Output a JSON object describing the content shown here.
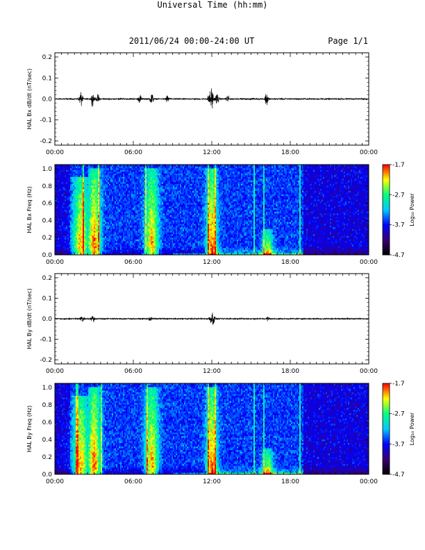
{
  "header": {
    "title": "2011/06/24  00:00-24:00 UT",
    "page": "Page 1/1"
  },
  "colors": {
    "waveform": "#000000",
    "colormap": [
      "#000000",
      "#3a0070",
      "#0000ff",
      "#00c8ff",
      "#00ff80",
      "#ffff00",
      "#ff0000"
    ]
  },
  "chart_data": [
    {
      "type": "line",
      "ylabel": "HAL Bx dB/dt (nT/sec)",
      "ylim": [
        -0.22,
        0.22
      ],
      "yticks": [
        "0.2",
        "0.1",
        "0.0",
        "-0.1",
        "-0.2"
      ],
      "yticks_values": [
        0.2,
        0.1,
        0.0,
        -0.1,
        -0.2
      ],
      "xlim": [
        0,
        24
      ],
      "xticks": [
        "00:00",
        "06:00",
        "12:00",
        "18:00",
        "00:00"
      ],
      "bursts": [
        {
          "t": 2.0,
          "amp": 0.035
        },
        {
          "t": 2.9,
          "amp": 0.03
        },
        {
          "t": 3.3,
          "amp": 0.02
        },
        {
          "t": 6.5,
          "amp": 0.02
        },
        {
          "t": 7.4,
          "amp": 0.03
        },
        {
          "t": 8.6,
          "amp": 0.018
        },
        {
          "t": 11.8,
          "amp": 0.025
        },
        {
          "t": 12.0,
          "amp": 0.055
        },
        {
          "t": 12.4,
          "amp": 0.03
        },
        {
          "t": 13.2,
          "amp": 0.02
        },
        {
          "t": 16.2,
          "amp": 0.038
        }
      ]
    },
    {
      "type": "heatmap",
      "ylabel": "HAL Bx Freq (Hz)",
      "ylim": [
        0,
        1.05
      ],
      "yticks": [
        "1.0",
        "0.8",
        "0.6",
        "0.4",
        "0.2",
        "0.0"
      ],
      "yticks_values": [
        1.0,
        0.8,
        0.6,
        0.4,
        0.2,
        0.0
      ],
      "xlim": [
        0,
        24
      ],
      "xticks": [
        "00:00",
        "06:00",
        "12:00",
        "18:00",
        "00:00"
      ],
      "colorbar_label": "Log₁₀ Power",
      "colorbar_range": [
        -4.7,
        -1.7
      ],
      "colorbar_ticks": [
        "-1.7",
        "-2.7",
        "-3.7",
        "-4.7"
      ],
      "colorbar_ticks_values": [
        -1.7,
        -2.7,
        -3.7,
        -4.7
      ],
      "activity": [
        {
          "t": 2.0,
          "w": 0.6,
          "level": 0.55,
          "fmax": 0.9
        },
        {
          "t": 3.0,
          "w": 0.5,
          "level": 0.6,
          "fmax": 1.0
        },
        {
          "t": 7.4,
          "w": 0.5,
          "level": 0.55,
          "fmax": 1.0
        },
        {
          "t": 12.0,
          "w": 0.4,
          "level": 0.6,
          "fmax": 1.0
        },
        {
          "t": 16.3,
          "w": 0.4,
          "level": 0.45,
          "fmax": 0.3
        }
      ],
      "stripes": [
        2.2,
        3.3,
        7.0,
        11.7,
        12.3,
        15.2,
        16.0,
        18.7
      ]
    },
    {
      "type": "line",
      "ylabel": "HAL By dB/dt (nT/sec)",
      "ylim": [
        -0.22,
        0.22
      ],
      "yticks": [
        "0.2",
        "0.1",
        "0.0",
        "-0.1",
        "-0.2"
      ],
      "yticks_values": [
        0.2,
        0.1,
        0.0,
        -0.1,
        -0.2
      ],
      "xlim": [
        0,
        24
      ],
      "xticks": [
        "00:00",
        "06:00",
        "12:00",
        "18:00",
        "00:00"
      ],
      "bursts": [
        {
          "t": 2.1,
          "amp": 0.02
        },
        {
          "t": 2.9,
          "amp": 0.018
        },
        {
          "t": 7.3,
          "amp": 0.012
        },
        {
          "t": 11.9,
          "amp": 0.015
        },
        {
          "t": 12.1,
          "amp": 0.04
        },
        {
          "t": 16.3,
          "amp": 0.012
        }
      ]
    },
    {
      "type": "heatmap",
      "ylabel": "HAL By Freq (Hz)",
      "ylim": [
        0,
        1.05
      ],
      "yticks": [
        "1.0",
        "0.8",
        "0.6",
        "0.4",
        "0.2",
        "0.0"
      ],
      "yticks_values": [
        1.0,
        0.8,
        0.6,
        0.4,
        0.2,
        0.0
      ],
      "xlim": [
        0,
        24
      ],
      "xticks": [
        "00:00",
        "06:00",
        "12:00",
        "18:00",
        "00:00"
      ],
      "colorbar_label": "Log₁₀ Power",
      "colorbar_range": [
        -4.7,
        -1.7
      ],
      "colorbar_ticks": [
        "-1.7",
        "-2.7",
        "-3.7",
        "-4.7"
      ],
      "colorbar_ticks_values": [
        -1.7,
        -2.7,
        -3.7,
        -4.7
      ],
      "activity": [
        {
          "t": 2.0,
          "w": 0.6,
          "level": 0.55,
          "fmax": 0.9
        },
        {
          "t": 3.0,
          "w": 0.5,
          "level": 0.6,
          "fmax": 1.0
        },
        {
          "t": 7.4,
          "w": 0.5,
          "level": 0.55,
          "fmax": 1.0
        },
        {
          "t": 12.0,
          "w": 0.4,
          "level": 0.6,
          "fmax": 1.0
        },
        {
          "t": 16.3,
          "w": 0.4,
          "level": 0.45,
          "fmax": 0.3
        }
      ],
      "stripes": [
        1.7,
        3.6,
        7.1,
        11.7,
        12.3,
        15.2,
        16.0,
        18.7
      ]
    }
  ],
  "xlabel": "Universal Time (hh:mm)"
}
